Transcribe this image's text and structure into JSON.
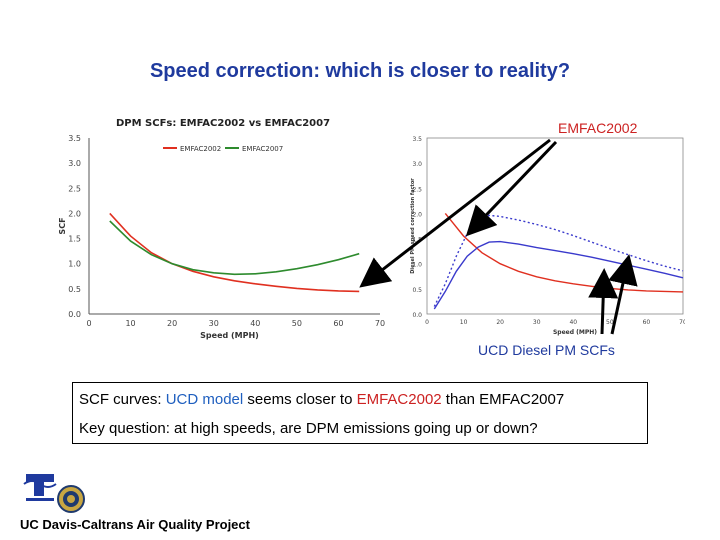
{
  "slide": {
    "title": "Speed correction: which is closer to reality?",
    "emfac_label": "EMFAC2002",
    "ucd_label": "UCD Diesel PM SCFs",
    "summary": {
      "line1_prefix": "SCF curves: ",
      "line1_ucd": "UCD model",
      "line1_mid": " seems closer to ",
      "line1_emfac": "EMFAC2002",
      "line1_suffix": " than EMFAC2007",
      "line2": "Key question:  at high speeds, are DPM emissions going up or down?"
    },
    "footer": "UC Davis-Caltrans Air Quality Project",
    "logos": [
      "caltrans-logo",
      "uc-davis-seal"
    ]
  },
  "chart_data": [
    {
      "type": "line",
      "title": "DPM SCFs: EMFAC2002 vs EMFAC2007",
      "xlabel": "Speed (MPH)",
      "ylabel": "SCF",
      "xlim": [
        0,
        70
      ],
      "ylim": [
        0,
        3.5
      ],
      "xticks": [
        0,
        10,
        20,
        30,
        40,
        50,
        60,
        70
      ],
      "yticks": [
        0.0,
        0.5,
        1.0,
        1.5,
        2.0,
        2.5,
        3.0,
        3.5
      ],
      "legend": "top-left",
      "series": [
        {
          "name": "EMFAC2002",
          "color": "#e03020",
          "x": [
            5,
            10,
            15,
            20,
            25,
            30,
            35,
            40,
            45,
            50,
            55,
            60,
            65
          ],
          "y": [
            2.0,
            1.55,
            1.22,
            1.0,
            0.85,
            0.74,
            0.66,
            0.6,
            0.55,
            0.51,
            0.48,
            0.46,
            0.45
          ]
        },
        {
          "name": "EMFAC2007",
          "color": "#2e8b2e",
          "x": [
            5,
            10,
            15,
            20,
            25,
            30,
            35,
            40,
            45,
            50,
            55,
            60,
            65
          ],
          "y": [
            1.85,
            1.45,
            1.18,
            1.0,
            0.88,
            0.82,
            0.79,
            0.8,
            0.84,
            0.9,
            0.98,
            1.08,
            1.2
          ]
        }
      ]
    },
    {
      "type": "line",
      "xlabel": "Speed (MPH)",
      "ylabel": "Diesel PM speed correction factor",
      "xlim": [
        0,
        70
      ],
      "ylim": [
        0,
        3.5
      ],
      "xticks": [
        0,
        10,
        20,
        30,
        40,
        50,
        60,
        70
      ],
      "yticks": [
        0.0,
        0.5,
        1.0,
        1.5,
        2.0,
        2.5,
        3.0,
        3.5
      ],
      "series": [
        {
          "color": "#e03020",
          "dash": "solid",
          "x": [
            5,
            10,
            15,
            20,
            25,
            30,
            35,
            40,
            45,
            50,
            55,
            60,
            65,
            70
          ],
          "y": [
            2.0,
            1.55,
            1.22,
            1.0,
            0.85,
            0.74,
            0.66,
            0.6,
            0.55,
            0.51,
            0.48,
            0.46,
            0.45,
            0.44
          ]
        },
        {
          "color": "#3a3acc",
          "dash": "dotted",
          "x": [
            2,
            5,
            8,
            11,
            14,
            17,
            20,
            25,
            30,
            35,
            40,
            45,
            50,
            55,
            60,
            65,
            70
          ],
          "y": [
            0.15,
            0.6,
            1.15,
            1.6,
            1.86,
            1.96,
            1.94,
            1.87,
            1.78,
            1.68,
            1.56,
            1.43,
            1.3,
            1.18,
            1.06,
            0.95,
            0.86
          ]
        },
        {
          "color": "#3a3acc",
          "dash": "solid",
          "x": [
            2,
            5,
            8,
            11,
            14,
            17,
            20,
            25,
            30,
            35,
            40,
            45,
            50,
            55,
            60,
            65,
            70
          ],
          "y": [
            0.1,
            0.45,
            0.85,
            1.15,
            1.33,
            1.43,
            1.44,
            1.39,
            1.32,
            1.26,
            1.2,
            1.13,
            1.05,
            0.97,
            0.89,
            0.81,
            0.72
          ]
        }
      ]
    }
  ]
}
